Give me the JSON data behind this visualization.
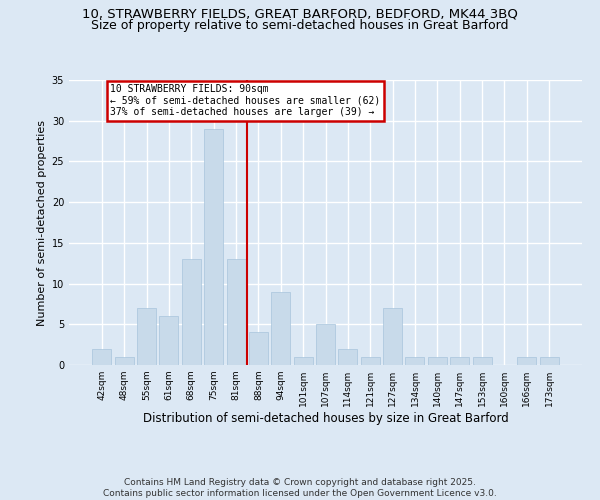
{
  "title1": "10, STRAWBERRY FIELDS, GREAT BARFORD, BEDFORD, MK44 3BQ",
  "title2": "Size of property relative to semi-detached houses in Great Barford",
  "xlabel": "Distribution of semi-detached houses by size in Great Barford",
  "ylabel": "Number of semi-detached properties",
  "categories": [
    "42sqm",
    "48sqm",
    "55sqm",
    "61sqm",
    "68sqm",
    "75sqm",
    "81sqm",
    "88sqm",
    "94sqm",
    "101sqm",
    "107sqm",
    "114sqm",
    "121sqm",
    "127sqm",
    "134sqm",
    "140sqm",
    "147sqm",
    "153sqm",
    "160sqm",
    "166sqm",
    "173sqm"
  ],
  "values": [
    2,
    1,
    7,
    6,
    13,
    29,
    13,
    4,
    9,
    1,
    5,
    2,
    1,
    7,
    1,
    1,
    1,
    1,
    0,
    1,
    1
  ],
  "bar_color": "#c8daea",
  "bar_edgecolor": "#a8c4dc",
  "vline_x_idx": 6.5,
  "vline_color": "#cc0000",
  "annotation_text": "10 STRAWBERRY FIELDS: 90sqm\n← 59% of semi-detached houses are smaller (62)\n37% of semi-detached houses are larger (39) →",
  "annotation_box_facecolor": "#ffffff",
  "annotation_box_edgecolor": "#cc0000",
  "ylim": [
    0,
    35
  ],
  "yticks": [
    0,
    5,
    10,
    15,
    20,
    25,
    30,
    35
  ],
  "footer": "Contains HM Land Registry data © Crown copyright and database right 2025.\nContains public sector information licensed under the Open Government Licence v3.0.",
  "bg_color": "#dce8f4",
  "grid_color": "#ffffff",
  "title_fontsize": 9.5,
  "subtitle_fontsize": 9,
  "ylabel_fontsize": 8,
  "xlabel_fontsize": 8.5,
  "tick_fontsize": 6.5,
  "footer_fontsize": 6.5,
  "annot_fontsize": 7
}
